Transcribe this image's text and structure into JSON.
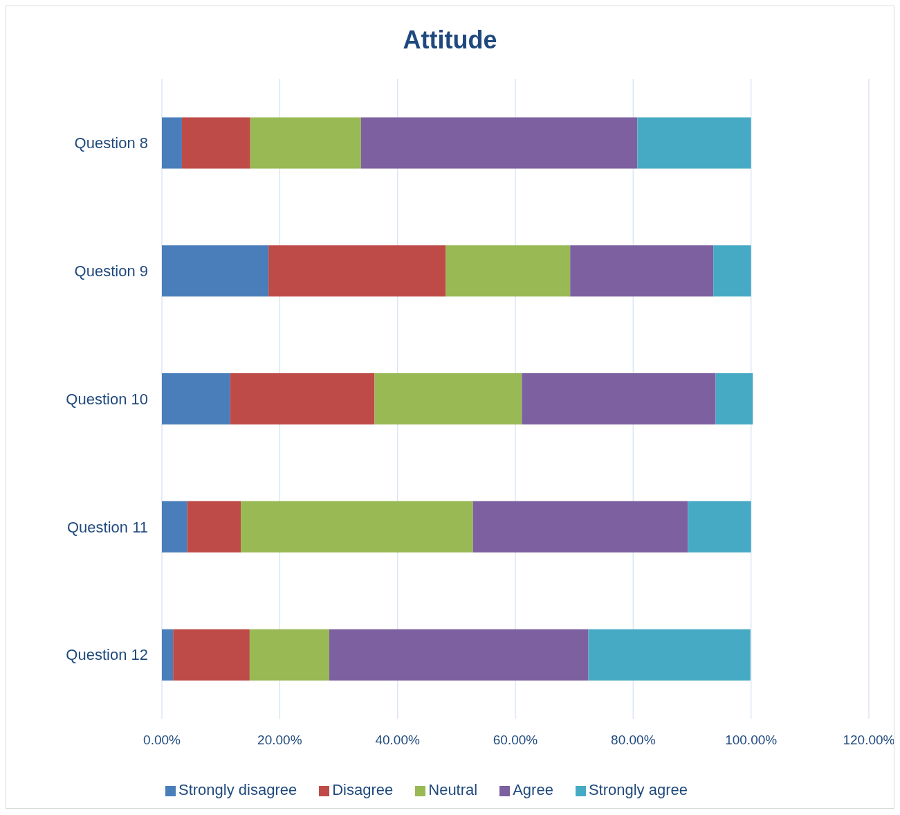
{
  "chart_data": {
    "type": "bar",
    "orientation": "horizontal",
    "stacked": true,
    "title": "Attitude",
    "categories": [
      "Question 8",
      "Question 9",
      "Question 10",
      "Question 11",
      "Question 12"
    ],
    "series": [
      {
        "name": "Strongly disagree",
        "color": "#4a7ebb",
        "values": [
          3.4,
          18.1,
          11.6,
          4.3,
          1.9
        ]
      },
      {
        "name": "Disagree",
        "color": "#be4b48",
        "values": [
          11.6,
          30.1,
          24.5,
          9.1,
          13.0
        ]
      },
      {
        "name": "Neutral",
        "color": "#98b954",
        "values": [
          18.8,
          21.1,
          25.0,
          39.4,
          13.5
        ]
      },
      {
        "name": "Agree",
        "color": "#7d60a0",
        "values": [
          46.9,
          24.3,
          32.9,
          36.5,
          44.0
        ]
      },
      {
        "name": "Strongly agree",
        "color": "#46aac5",
        "values": [
          19.3,
          6.4,
          6.3,
          10.7,
          27.5
        ]
      }
    ],
    "xlim": [
      0,
      120
    ],
    "xticks": [
      {
        "value": 0,
        "label": "0.00%"
      },
      {
        "value": 20,
        "label": "20.00%"
      },
      {
        "value": 40,
        "label": "40.00%"
      },
      {
        "value": 60,
        "label": "60.00%"
      },
      {
        "value": 80,
        "label": "80.00%"
      },
      {
        "value": 100,
        "label": "100.00%"
      },
      {
        "value": 120,
        "label": "120.00%"
      }
    ],
    "grid": "x",
    "legend": "bottom"
  }
}
